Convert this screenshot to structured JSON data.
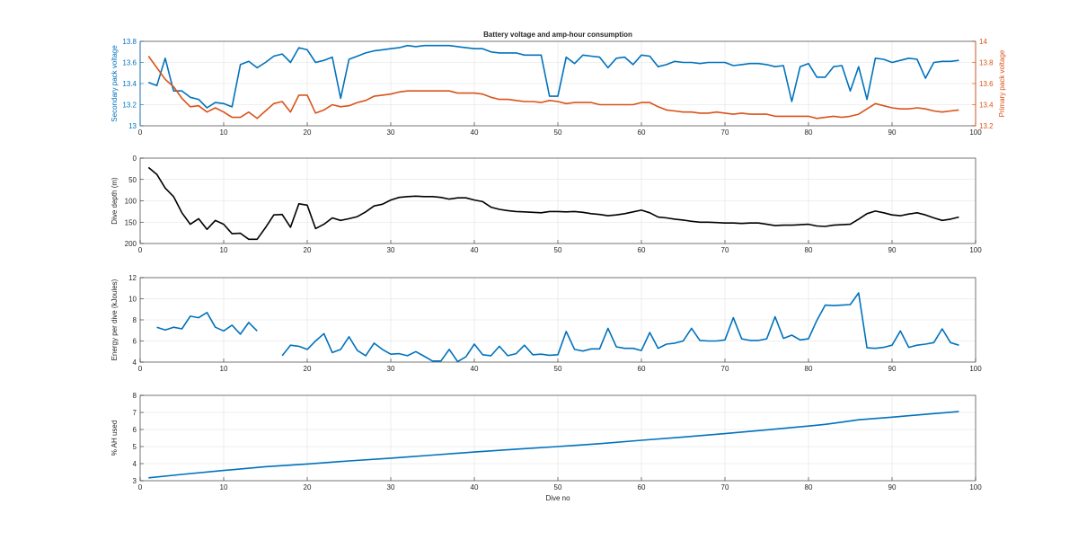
{
  "figure_title": "Battery voltage and amp-hour consumption",
  "colors": {
    "blue": "#0072BD",
    "orange": "#D95319",
    "black": "#000000"
  },
  "chart_data": [
    {
      "type": "line",
      "title": "Battery voltage and amp-hour consumption",
      "xlabel": "",
      "x_ticks": [
        0,
        10,
        20,
        30,
        40,
        50,
        60,
        70,
        80,
        90,
        100
      ],
      "xlim": [
        0,
        100
      ],
      "grid": true,
      "ylabel_left": "Secondary pack voltage",
      "ylim_left": [
        13,
        13.8
      ],
      "y_ticks_left": [
        "13",
        "13.2",
        "13.4",
        "13.6",
        "13.8"
      ],
      "ylabel_right": "Primary pack voltage",
      "ylim_right": [
        13.2,
        14
      ],
      "y_ticks_right": [
        "13.2",
        "13.4",
        "13.6",
        "13.8",
        "14"
      ],
      "series": [
        {
          "axis": "left",
          "color": "#0072BD",
          "x": [
            1,
            2,
            3,
            4,
            5,
            6,
            7,
            8,
            9,
            10,
            11,
            12,
            13,
            14,
            15,
            16,
            17,
            18,
            19,
            20,
            21,
            22,
            23,
            24,
            25,
            26,
            27,
            28,
            29,
            30,
            31,
            32,
            33,
            34,
            35,
            36,
            37,
            38,
            39,
            40,
            41,
            42,
            43,
            44,
            45,
            46,
            47,
            48,
            49,
            50,
            51,
            52,
            53,
            54,
            55,
            56,
            57,
            58,
            59,
            60,
            61,
            62,
            63,
            64,
            65,
            66,
            67,
            68,
            69,
            70,
            71,
            72,
            73,
            74,
            75,
            76,
            77,
            78,
            79,
            80,
            81,
            82,
            83,
            84,
            85,
            86,
            87,
            88,
            89,
            90,
            91,
            92,
            93,
            94,
            95,
            96,
            97,
            98
          ],
          "y": [
            13.41,
            13.38,
            13.64,
            13.33,
            13.33,
            13.27,
            13.25,
            13.17,
            13.22,
            13.21,
            13.18,
            13.58,
            13.61,
            13.55,
            13.6,
            13.66,
            13.68,
            13.6,
            13.74,
            13.72,
            13.6,
            13.62,
            13.65,
            13.26,
            13.63,
            13.66,
            13.69,
            13.71,
            13.72,
            13.73,
            13.74,
            13.76,
            13.75,
            13.76,
            13.76,
            13.76,
            13.76,
            13.75,
            13.74,
            13.73,
            13.73,
            13.7,
            13.69,
            13.69,
            13.69,
            13.67,
            13.67,
            13.67,
            13.28,
            13.28,
            13.65,
            13.59,
            13.67,
            13.66,
            13.65,
            13.55,
            13.64,
            13.65,
            13.58,
            13.67,
            13.66,
            13.56,
            13.58,
            13.61,
            13.6,
            13.6,
            13.59,
            13.6,
            13.6,
            13.6,
            13.57,
            13.58,
            13.59,
            13.59,
            13.58,
            13.56,
            13.57,
            13.23,
            13.56,
            13.59,
            13.46,
            13.46,
            13.56,
            13.57,
            13.33,
            13.56,
            13.25,
            13.64,
            13.63,
            13.6,
            13.62,
            13.64,
            13.63,
            13.45,
            13.6,
            13.61,
            13.61,
            13.62
          ]
        },
        {
          "axis": "right",
          "color": "#D95319",
          "x": [
            1,
            2,
            3,
            4,
            5,
            6,
            7,
            8,
            9,
            10,
            11,
            12,
            13,
            14,
            15,
            16,
            17,
            18,
            19,
            20,
            21,
            22,
            23,
            24,
            25,
            26,
            27,
            28,
            29,
            30,
            31,
            32,
            33,
            34,
            35,
            36,
            37,
            38,
            39,
            40,
            41,
            42,
            43,
            44,
            45,
            46,
            47,
            48,
            49,
            50,
            51,
            52,
            53,
            54,
            55,
            56,
            57,
            58,
            59,
            60,
            61,
            62,
            63,
            64,
            65,
            66,
            67,
            68,
            69,
            70,
            71,
            72,
            73,
            74,
            75,
            76,
            77,
            78,
            79,
            80,
            81,
            82,
            83,
            84,
            85,
            86,
            87,
            88,
            89,
            90,
            91,
            92,
            93,
            94,
            95,
            96,
            97,
            98
          ],
          "y": [
            13.86,
            13.75,
            13.64,
            13.57,
            13.46,
            13.38,
            13.39,
            13.33,
            13.37,
            13.33,
            13.28,
            13.28,
            13.33,
            13.27,
            13.34,
            13.41,
            13.43,
            13.33,
            13.49,
            13.49,
            13.32,
            13.35,
            13.4,
            13.38,
            13.39,
            13.42,
            13.44,
            13.48,
            13.49,
            13.5,
            13.52,
            13.53,
            13.53,
            13.53,
            13.53,
            13.53,
            13.53,
            13.51,
            13.51,
            13.51,
            13.5,
            13.47,
            13.45,
            13.45,
            13.44,
            13.43,
            13.43,
            13.42,
            13.44,
            13.43,
            13.41,
            13.42,
            13.42,
            13.42,
            13.4,
            13.4,
            13.4,
            13.4,
            13.4,
            13.42,
            13.42,
            13.38,
            13.35,
            13.34,
            13.33,
            13.33,
            13.32,
            13.32,
            13.33,
            13.32,
            13.31,
            13.32,
            13.31,
            13.31,
            13.31,
            13.29,
            13.29,
            13.29,
            13.29,
            13.29,
            13.27,
            13.28,
            13.29,
            13.28,
            13.29,
            13.31,
            13.36,
            13.41,
            13.39,
            13.37,
            13.36,
            13.36,
            13.37,
            13.36,
            13.34,
            13.33,
            13.34,
            13.35
          ]
        }
      ]
    },
    {
      "type": "line",
      "title": "",
      "xlabel": "",
      "x_ticks": [
        0,
        10,
        20,
        30,
        40,
        50,
        60,
        70,
        80,
        90,
        100
      ],
      "xlim": [
        0,
        100
      ],
      "grid": true,
      "ylabel": "Dive depth (m)",
      "ylim": [
        0,
        200
      ],
      "y_reversed": true,
      "y_ticks": [
        "0",
        "50",
        "100",
        "150",
        "200"
      ],
      "series": [
        {
          "color": "#000000",
          "x": [
            1,
            2,
            3,
            4,
            5,
            6,
            7,
            8,
            9,
            10,
            11,
            12,
            13,
            14,
            15,
            16,
            17,
            18,
            19,
            20,
            21,
            22,
            23,
            24,
            25,
            26,
            27,
            28,
            29,
            30,
            31,
            32,
            33,
            34,
            35,
            36,
            37,
            38,
            39,
            40,
            41,
            42,
            43,
            44,
            45,
            46,
            47,
            48,
            49,
            50,
            51,
            52,
            53,
            54,
            55,
            56,
            57,
            58,
            59,
            60,
            61,
            62,
            63,
            64,
            65,
            66,
            67,
            68,
            69,
            70,
            71,
            72,
            73,
            74,
            75,
            76,
            77,
            78,
            79,
            80,
            81,
            82,
            83,
            84,
            85,
            86,
            87,
            88,
            89,
            90,
            91,
            92,
            93,
            94,
            95,
            96,
            97,
            98
          ],
          "y": [
            22,
            38,
            70,
            90,
            128,
            155,
            142,
            167,
            146,
            155,
            177,
            176,
            190,
            190,
            163,
            133,
            132,
            162,
            107,
            110,
            165,
            155,
            140,
            146,
            142,
            137,
            126,
            112,
            108,
            98,
            92,
            90,
            89,
            90,
            90,
            92,
            96,
            93,
            93,
            98,
            102,
            115,
            120,
            123,
            125,
            126,
            127,
            128,
            125,
            125,
            126,
            125,
            127,
            130,
            132,
            135,
            133,
            130,
            126,
            122,
            128,
            138,
            140,
            143,
            145,
            148,
            150,
            150,
            151,
            152,
            152,
            153,
            152,
            152,
            155,
            158,
            157,
            157,
            156,
            155,
            159,
            160,
            157,
            156,
            155,
            143,
            130,
            124,
            128,
            133,
            135,
            131,
            128,
            133,
            140,
            146,
            143,
            138
          ]
        }
      ]
    },
    {
      "type": "line",
      "title": "",
      "xlabel": "",
      "x_ticks": [
        0,
        10,
        20,
        30,
        40,
        50,
        60,
        70,
        80,
        90,
        100
      ],
      "xlim": [
        0,
        100
      ],
      "grid": true,
      "ylabel": "Energy per dive (kJoules)",
      "ylim": [
        4,
        12
      ],
      "y_ticks": [
        "4",
        "6",
        "8",
        "10",
        "12"
      ],
      "series": [
        {
          "color": "#0072BD",
          "x": [
            2,
            3,
            4,
            5,
            6,
            7,
            8,
            9,
            10,
            11,
            12,
            13,
            14
          ],
          "y": [
            7.3,
            7.05,
            7.3,
            7.15,
            8.35,
            8.2,
            8.7,
            7.3,
            6.95,
            7.5,
            6.65,
            7.75,
            6.95
          ]
        },
        {
          "color": "#0072BD",
          "x": [
            17,
            18,
            19,
            20,
            21,
            22,
            23,
            24,
            25,
            26,
            27,
            28,
            29,
            30,
            31,
            32,
            33,
            34,
            35,
            36,
            37,
            38,
            39,
            40,
            41,
            42,
            43,
            44,
            45,
            46,
            47,
            48,
            49,
            50,
            51,
            52,
            53,
            54,
            55,
            56,
            57,
            58,
            59,
            60,
            61,
            62,
            63,
            64,
            65,
            66,
            67,
            68,
            69,
            70,
            71,
            72,
            73,
            74,
            75,
            76,
            77,
            78,
            79,
            80,
            81,
            82,
            83,
            84,
            85,
            86,
            87,
            88,
            89,
            90,
            91,
            92,
            93,
            94,
            95,
            96,
            97,
            98
          ],
          "y": [
            4.6,
            5.6,
            5.5,
            5.2,
            6.0,
            6.7,
            4.9,
            5.2,
            6.4,
            5.1,
            4.6,
            5.8,
            5.2,
            4.75,
            4.8,
            4.6,
            5.0,
            4.55,
            4.1,
            4.1,
            5.2,
            4.05,
            4.5,
            5.7,
            4.7,
            4.6,
            5.5,
            4.6,
            4.8,
            5.6,
            4.7,
            4.75,
            4.65,
            4.7,
            6.9,
            5.2,
            5.05,
            5.25,
            5.25,
            7.2,
            5.45,
            5.3,
            5.3,
            5.1,
            6.8,
            5.3,
            5.7,
            5.8,
            6.0,
            7.2,
            6.05,
            6.0,
            6.0,
            6.1,
            8.2,
            6.2,
            6.05,
            6.05,
            6.2,
            8.3,
            6.25,
            6.55,
            6.1,
            6.2,
            7.95,
            9.4,
            9.35,
            9.4,
            9.45,
            10.55,
            5.35,
            5.3,
            5.4,
            5.6,
            6.95,
            5.4,
            5.6,
            5.7,
            5.85,
            7.15,
            5.85,
            5.6
          ]
        }
      ]
    },
    {
      "type": "line",
      "title": "",
      "xlabel": "Dive no",
      "x_ticks": [
        0,
        10,
        20,
        30,
        40,
        50,
        60,
        70,
        80,
        90,
        100
      ],
      "xlim": [
        0,
        100
      ],
      "grid": true,
      "ylabel": "% AH used",
      "ylim": [
        3,
        8
      ],
      "y_ticks": [
        "3",
        "4",
        "5",
        "6",
        "7",
        "8"
      ],
      "series": [
        {
          "color": "#0072BD",
          "x": [
            1,
            5,
            10,
            15,
            20,
            25,
            30,
            35,
            40,
            45,
            50,
            55,
            60,
            65,
            70,
            75,
            80,
            82,
            84,
            86,
            90,
            95,
            98
          ],
          "y": [
            3.17,
            3.37,
            3.6,
            3.82,
            3.98,
            4.16,
            4.32,
            4.5,
            4.68,
            4.85,
            5.0,
            5.17,
            5.37,
            5.56,
            5.76,
            5.98,
            6.2,
            6.3,
            6.43,
            6.57,
            6.72,
            6.93,
            7.05
          ]
        }
      ]
    }
  ]
}
